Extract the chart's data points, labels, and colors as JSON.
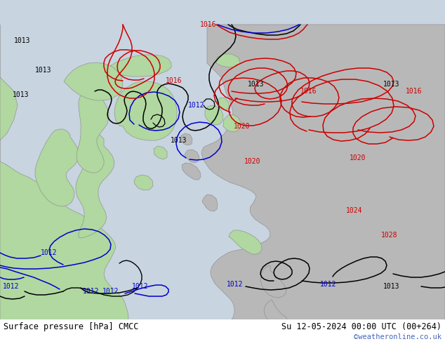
{
  "title_left": "Surface pressure [hPa] CMCC",
  "title_right": "Su 12-05-2024 00:00 UTC (00+264)",
  "watermark": "©weatheronline.co.uk",
  "bg_color": "#c8d4e0",
  "land_color_green": "#b0d8a0",
  "land_color_gray": "#b8b8b8",
  "bottom_bar_color": "#ffffff",
  "font_color_black": "#000000",
  "font_color_blue": "#0000cc",
  "font_color_red": "#cc0000",
  "font_color_watermark": "#4466bb",
  "figsize": [
    6.34,
    4.9
  ],
  "dpi": 100
}
